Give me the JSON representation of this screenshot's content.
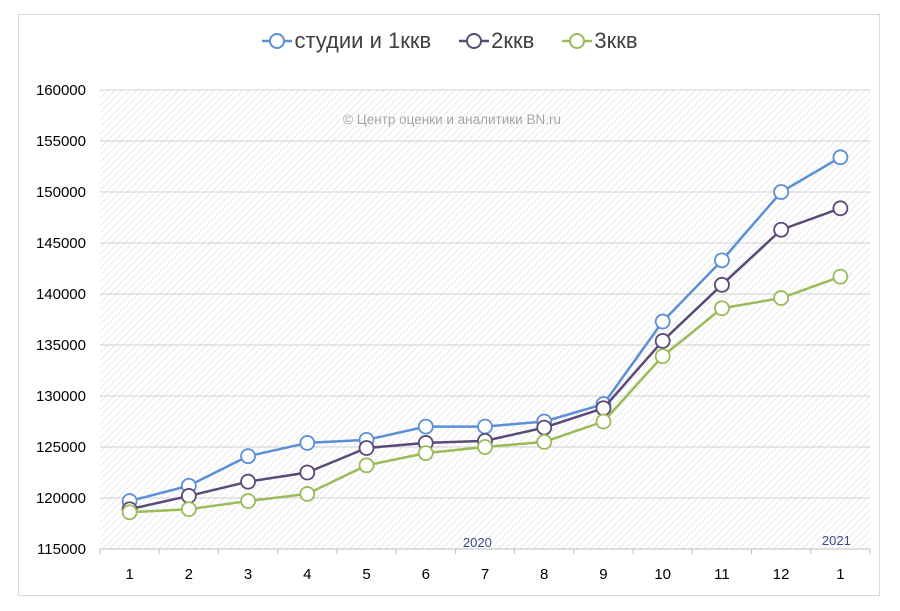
{
  "chart_data": {
    "type": "line",
    "categories": [
      "1",
      "2",
      "3",
      "4",
      "5",
      "6",
      "7",
      "8",
      "9",
      "10",
      "11",
      "12",
      "1"
    ],
    "series": [
      {
        "name": "студии и 1ккв",
        "color": "#5b8fd6",
        "values": [
          119700,
          121200,
          124100,
          125400,
          125700,
          127000,
          127000,
          127500,
          129200,
          137300,
          143300,
          150000,
          153400
        ]
      },
      {
        "name": "2ккв",
        "color": "#5a4a78",
        "values": [
          118900,
          120200,
          121600,
          122500,
          124900,
          125400,
          125600,
          126900,
          128800,
          135400,
          140900,
          146300,
          148400
        ]
      },
      {
        "name": "3ккв",
        "color": "#9bbb59",
        "values": [
          118600,
          118900,
          119700,
          120400,
          123200,
          124400,
          125000,
          125500,
          127500,
          133900,
          138600,
          139600,
          141700
        ]
      }
    ],
    "ylim": [
      115000,
      160000
    ],
    "yticks": [
      115000,
      120000,
      125000,
      130000,
      135000,
      140000,
      145000,
      150000,
      155000,
      160000
    ],
    "grid": true,
    "legend": "top",
    "annotations": {
      "watermark": "© Центр оценки и аналитики BN.ru",
      "year_2020": "2020",
      "year_2021": "2021"
    }
  }
}
